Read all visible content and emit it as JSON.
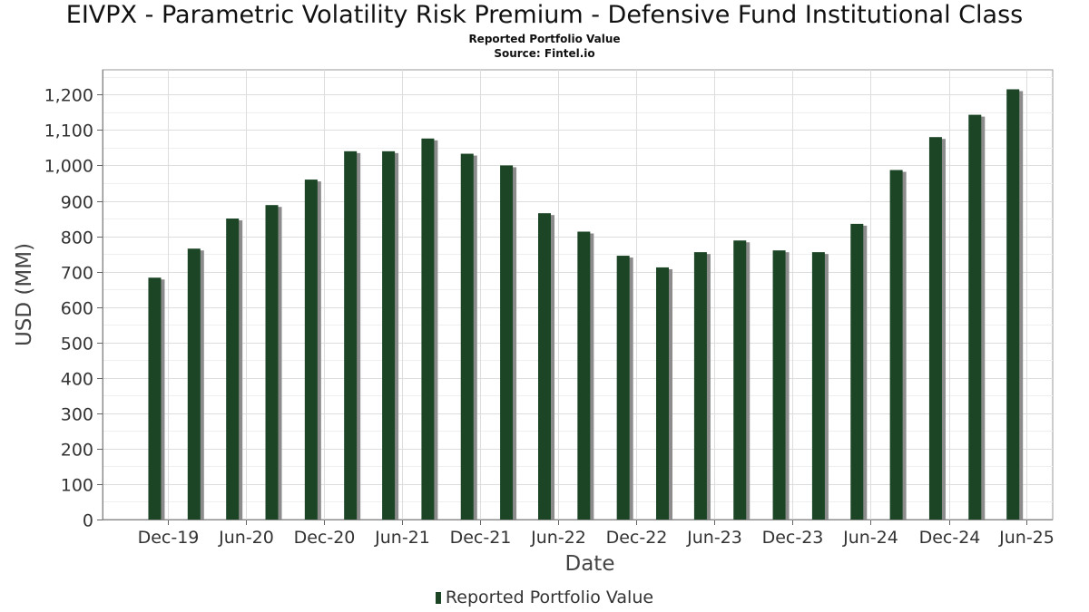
{
  "chart_data": {
    "type": "bar",
    "title": "EIVPX - Parametric Volatility Risk Premium - Defensive Fund Institutional Class",
    "subtitle_lines": [
      "Reported Portfolio Value",
      "Source: Fintel.io"
    ],
    "xlabel": "Date",
    "ylabel": "USD (MM)",
    "ylim": [
      0,
      1270
    ],
    "yticks": [
      0,
      100,
      200,
      300,
      400,
      500,
      600,
      700,
      800,
      900,
      1000,
      1100,
      1200
    ],
    "ytick_labels": [
      "0",
      "100",
      "200",
      "300",
      "400",
      "500",
      "600",
      "700",
      "800",
      "900",
      "1,000",
      "1,100",
      "1,200"
    ],
    "xlim": [
      "2019-07-01",
      "2025-08-01"
    ],
    "xticks": [
      "2019-12-01",
      "2020-06-01",
      "2020-12-01",
      "2021-06-01",
      "2021-12-01",
      "2022-06-01",
      "2022-12-01",
      "2023-06-01",
      "2023-12-01",
      "2024-06-01",
      "2024-12-01",
      "2025-06-01"
    ],
    "xtick_labels": [
      "Dec-19",
      "Jun-20",
      "Dec-20",
      "Jun-21",
      "Dec-21",
      "Jun-22",
      "Dec-22",
      "Jun-23",
      "Dec-23",
      "Jun-24",
      "Dec-24",
      "Jun-25"
    ],
    "x": [
      "2019-10-31",
      "2020-01-31",
      "2020-04-30",
      "2020-07-31",
      "2020-10-31",
      "2021-01-31",
      "2021-04-30",
      "2021-07-31",
      "2021-10-31",
      "2022-01-31",
      "2022-04-30",
      "2022-07-31",
      "2022-10-31",
      "2023-01-31",
      "2023-04-30",
      "2023-07-31",
      "2023-10-31",
      "2024-01-31",
      "2024-04-30",
      "2024-07-31",
      "2024-10-31",
      "2025-01-31",
      "2025-04-30"
    ],
    "series": [
      {
        "name": "Reported Portfolio Value",
        "color": "#1b4525",
        "values": [
          683,
          765,
          850,
          888,
          960,
          1040,
          1040,
          1076,
          1033,
          1000,
          865,
          813,
          745,
          712,
          755,
          788,
          760,
          755,
          835,
          987,
          1080,
          1143,
          1215
        ]
      }
    ],
    "grid": true,
    "legend_position": "bottom-center"
  }
}
